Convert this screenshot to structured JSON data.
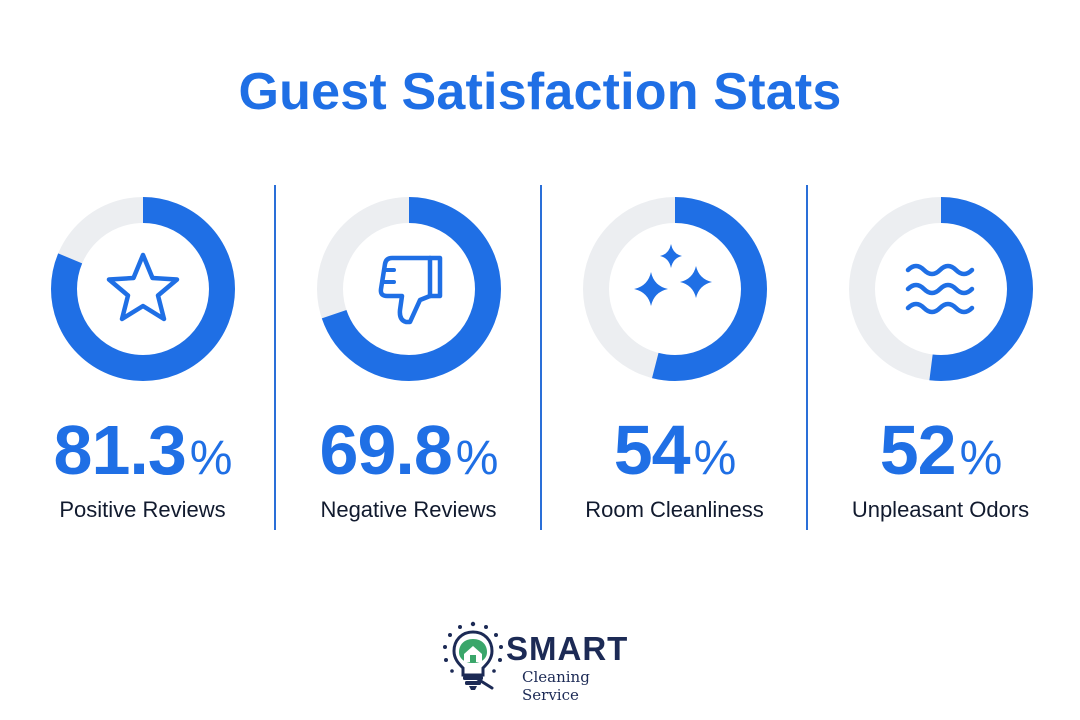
{
  "title": "Guest Satisfaction Stats",
  "colors": {
    "accent": "#1f6fe5",
    "track": "#eceef1",
    "text": "#111a2e",
    "brand": "#1c2a55"
  },
  "stats": [
    {
      "value": "81.3",
      "unit": "%",
      "label": "Positive Reviews",
      "fraction": 0.813,
      "icon": "star-icon"
    },
    {
      "value": "69.8",
      "unit": "%",
      "label": "Negative Reviews",
      "fraction": 0.698,
      "icon": "thumbs-down-icon"
    },
    {
      "value": "54",
      "unit": "%",
      "label": "Room Cleanliness",
      "fraction": 0.54,
      "icon": "sparkles-icon"
    },
    {
      "value": "52",
      "unit": "%",
      "label": "Unpleasant Odors",
      "fraction": 0.52,
      "icon": "odor-waves-icon"
    }
  ],
  "brand": {
    "name": "SMART",
    "subtitle": "Cleaning Service",
    "logo_icon": "lightbulb-house-logo-icon"
  }
}
